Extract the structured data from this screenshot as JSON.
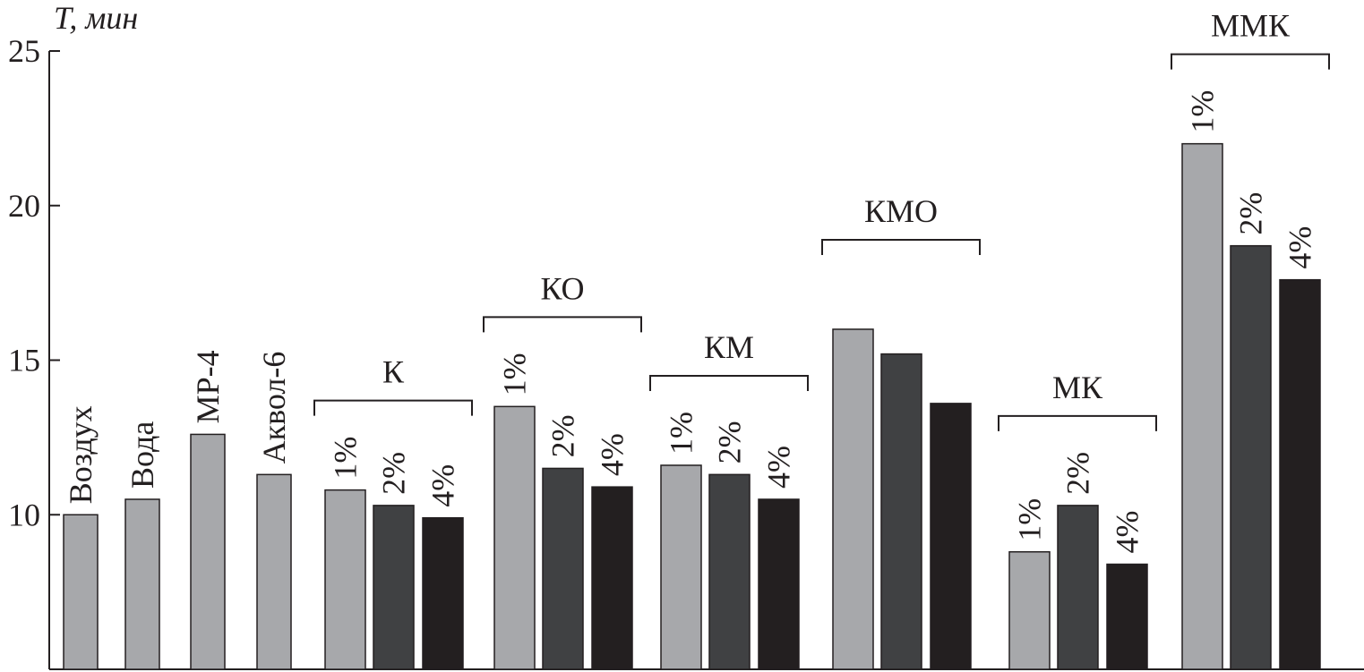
{
  "chart_data": {
    "type": "bar",
    "ylabel": "T, мин",
    "ylim": [
      5,
      25
    ],
    "yticks": [
      10,
      15,
      20,
      25
    ],
    "colors": [
      "#a7a8ab",
      "#404143",
      "#231f20"
    ],
    "singles": {
      "categories": [
        "Воздух",
        "Вода",
        "МР-4",
        "Аквол-6"
      ],
      "values": [
        10.0,
        10.5,
        12.6,
        11.3
      ]
    },
    "groups": [
      {
        "name": "К",
        "labels": [
          "1%",
          "2%",
          "4%"
        ],
        "values": [
          10.8,
          10.3,
          9.9
        ]
      },
      {
        "name": "КО",
        "labels": [
          "1%",
          "2%",
          "4%"
        ],
        "values": [
          13.5,
          11.5,
          10.9
        ]
      },
      {
        "name": "КМ",
        "labels": [
          "1%",
          "2%",
          "4%"
        ],
        "values": [
          11.6,
          11.3,
          10.5
        ]
      },
      {
        "name": "КМО",
        "labels": [
          null,
          null,
          null
        ],
        "values": [
          16.0,
          15.2,
          13.6
        ]
      },
      {
        "name": "МК",
        "labels": [
          "1%",
          "2%",
          "4%"
        ],
        "values": [
          8.8,
          10.3,
          8.4
        ]
      },
      {
        "name": "ММК",
        "labels": [
          "1%",
          "2%",
          "4%"
        ],
        "values": [
          22.0,
          18.7,
          17.6
        ]
      }
    ]
  }
}
